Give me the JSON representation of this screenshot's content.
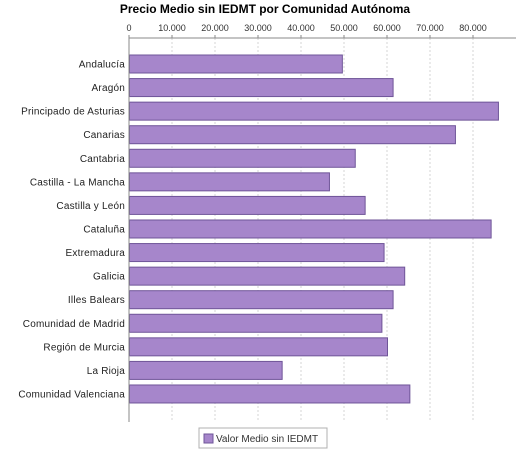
{
  "chart_data": {
    "type": "bar",
    "orientation": "horizontal",
    "title": "Precio Medio sin IEDMT por Comunidad Autónoma",
    "categories": [
      "Andalucía",
      "Aragón",
      "Principado de Asturias",
      "Canarias",
      "Cantabria",
      "Castilla - La Mancha",
      "Castilla y León",
      "Cataluña",
      "Extremadura",
      "Galicia",
      "Illes Balears",
      "Comunidad de Madrid",
      "Región de Murcia",
      "La Rioja",
      "Comunidad Valenciana"
    ],
    "series": [
      {
        "name": "Valor Medio sin IEDMT",
        "values": [
          49500,
          61300,
          85800,
          75800,
          52500,
          46500,
          54800,
          84100,
          59200,
          64000,
          61300,
          58700,
          60000,
          35500,
          65200
        ]
      }
    ],
    "xlim": [
      0,
      90000
    ],
    "x_ticks": [
      0,
      10000,
      20000,
      30000,
      40000,
      50000,
      60000,
      70000,
      80000
    ],
    "x_tick_labels": [
      "0",
      "10.000",
      "20.000",
      "30.000",
      "40.000",
      "50.000",
      "60.000",
      "70.000",
      "80.000"
    ],
    "value_axis_position": "top",
    "grid": true,
    "legend_position": "bottom",
    "colors": {
      "bar_fill": "#a686cb",
      "bar_stroke": "#6f5598",
      "grid": "#d4d4d4",
      "axis": "#8a8a8a"
    }
  }
}
